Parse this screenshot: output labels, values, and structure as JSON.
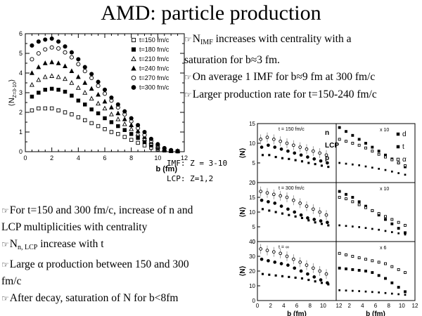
{
  "slide": {
    "title": "AMD: particle production",
    "bullets_top": [
      {
        "pre": "N",
        "sub": "IMF",
        "post": " increases with centrality with a"
      },
      {
        "pre": "saturation for b≈3 fm.",
        "sub": "",
        "post": ""
      },
      {
        "pre": "On average 1 IMF for b≈9 fm at 300 fm/c",
        "sub": "",
        "post": ""
      },
      {
        "pre": "Larger production rate for t=150-240 fm/c",
        "sub": "",
        "post": ""
      }
    ],
    "notes": [
      "IMF: Z = 3-10",
      "LCP: Z=1,2"
    ],
    "bullets_bottom": [
      {
        "pre": "For t=150 and 300 fm/c, increase of n and",
        "sub": "",
        "post": ""
      },
      {
        "pre": "LCP multiplicities with centrality",
        "sub": "",
        "post": ""
      },
      {
        "pre": "N",
        "sub": "n, LCP",
        "post": " increase with t"
      },
      {
        "pre": "Large α production between 150 and 300",
        "sub": "",
        "post": ""
      },
      {
        "pre": "fm/c",
        "sub": "",
        "post": ""
      },
      {
        "pre": "After decay, saturation of N for b<8fm",
        "sub": "",
        "post": ""
      }
    ]
  },
  "chart_data": [
    {
      "type": "scatter",
      "xlabel": "b (fm)",
      "ylabel": "⟨N",
      "ylabel_sub": "Z=3-10",
      "ylabel_end": "⟩",
      "xlim": [
        0,
        12
      ],
      "ylim": [
        0,
        6
      ],
      "xticks": [
        "0",
        "2",
        "4",
        "6",
        "8",
        "10",
        "12"
      ],
      "yticks": [
        "0",
        "1",
        "2",
        "3",
        "4",
        "5",
        "6"
      ],
      "x": [
        0.5,
        1.0,
        1.5,
        2.0,
        2.5,
        3.0,
        3.5,
        4.0,
        4.5,
        5.0,
        5.5,
        6.0,
        6.5,
        7.0,
        7.5,
        8.0,
        8.5,
        9.0,
        9.5,
        10.0,
        10.5,
        11.0,
        11.5
      ],
      "series": [
        {
          "name": "t=150 fm/c",
          "marker": "open-square",
          "values": [
            2.1,
            2.2,
            2.2,
            2.2,
            2.1,
            2.0,
            1.9,
            1.75,
            1.6,
            1.45,
            1.3,
            1.15,
            1.0,
            0.9,
            0.75,
            0.6,
            0.45,
            0.32,
            0.2,
            0.12,
            0.06,
            0.03,
            0.02
          ]
        },
        {
          "name": "t=180 fm/c",
          "marker": "filled-square",
          "values": [
            2.8,
            3.0,
            3.15,
            3.2,
            3.15,
            3.05,
            2.85,
            2.6,
            2.4,
            2.15,
            1.95,
            1.7,
            1.5,
            1.3,
            1.1,
            0.9,
            0.7,
            0.5,
            0.32,
            0.18,
            0.08,
            0.04,
            0.02
          ]
        },
        {
          "name": "t=210 fm/c",
          "marker": "open-triangle",
          "values": [
            3.4,
            3.65,
            3.8,
            3.85,
            3.8,
            3.7,
            3.5,
            3.25,
            3.0,
            2.7,
            2.45,
            2.2,
            1.9,
            1.65,
            1.4,
            1.15,
            0.9,
            0.65,
            0.42,
            0.25,
            0.12,
            0.05,
            0.03
          ]
        },
        {
          "name": "t=240 fm/c",
          "marker": "filled-triangle",
          "values": [
            4.0,
            4.3,
            4.5,
            4.55,
            4.5,
            4.35,
            4.1,
            3.8,
            3.5,
            3.2,
            2.9,
            2.55,
            2.25,
            1.95,
            1.65,
            1.35,
            1.05,
            0.75,
            0.5,
            0.3,
            0.14,
            0.06,
            0.03
          ]
        },
        {
          "name": "t=270 fm/c",
          "marker": "open-circle",
          "values": [
            4.7,
            5.0,
            5.2,
            5.3,
            5.25,
            5.05,
            4.8,
            4.45,
            4.1,
            3.75,
            3.35,
            2.95,
            2.6,
            2.25,
            1.9,
            1.55,
            1.2,
            0.85,
            0.55,
            0.33,
            0.16,
            0.07,
            0.03
          ]
        },
        {
          "name": "t=300 fm/c",
          "marker": "filled-circle",
          "values": [
            5.4,
            5.6,
            5.7,
            5.75,
            5.6,
            5.35,
            5.05,
            4.7,
            4.3,
            3.95,
            3.55,
            3.15,
            2.75,
            2.4,
            2.05,
            1.7,
            1.35,
            1.0,
            0.65,
            0.38,
            0.18,
            0.08,
            0.03
          ]
        }
      ]
    },
    {
      "type": "scatter",
      "xlabel": "b (fm)",
      "ylabel": "⟨N⟩",
      "panels": [
        {
          "label": "t = 150 fm/c",
          "ylim": [
            0,
            15
          ],
          "yticks": [
            "0",
            "5",
            "10",
            "15"
          ],
          "legend": [
            "n",
            "LCP",
            "p"
          ],
          "factor": "x 10",
          "legend_right": [
            "d",
            "t",
            "α"
          ]
        },
        {
          "label": "t = 300 fm/c",
          "ylim": [
            0,
            20
          ],
          "yticks": [
            "0",
            "5",
            "10",
            "15",
            "20"
          ],
          "legend": [],
          "factor": "x 10",
          "legend_right": []
        },
        {
          "label": "t = ∞",
          "ylim": [
            0,
            40
          ],
          "yticks": [
            "0",
            "10",
            "20",
            "30",
            "40"
          ],
          "legend": [],
          "factor": "x 6",
          "legend_right": []
        }
      ],
      "xticks_left": [
        "0",
        "2",
        "4",
        "6",
        "8",
        "10"
      ],
      "xticks_right": [
        "12",
        "2",
        "4",
        "6",
        "8",
        "10",
        "12"
      ],
      "x": [
        0.5,
        1.5,
        2.5,
        3.5,
        4.5,
        5.5,
        6.5,
        7.5,
        8.5,
        9.5,
        10.5
      ],
      "left_series": [
        {
          "name": "n",
          "values": [
            [
              11,
              11.5,
              11,
              10.5,
              10,
              9.5,
              9,
              8.5,
              8,
              7.5,
              7
            ],
            [
              17,
              16.5,
              16,
              15.5,
              15,
              14,
              13,
              12,
              11,
              10,
              9
            ],
            [
              35,
              34,
              33,
              32,
              30,
              28,
              26,
              24,
              22,
              20,
              18
            ]
          ]
        },
        {
          "name": "LCP",
          "values": [
            [
              9,
              9.5,
              9,
              8.5,
              8,
              7.5,
              7,
              6.5,
              6,
              5.5,
              5
            ],
            [
              14,
              13.5,
              13,
              12,
              11,
              10,
              9,
              8,
              7.5,
              7,
              6.5
            ],
            [
              28,
              27,
              26,
              25,
              24,
              22,
              20,
              18,
              16,
              14,
              12
            ]
          ]
        },
        {
          "name": "p",
          "values": [
            [
              7,
              7,
              6.5,
              6.2,
              6,
              5.7,
              5.4,
              5,
              4.7,
              4.3,
              4
            ],
            [
              11,
              10.5,
              10,
              9.5,
              9,
              8.5,
              8,
              7.2,
              6.5,
              6,
              5.5
            ],
            [
              18,
              17.5,
              17,
              16.5,
              16,
              15.5,
              15,
              14,
              13,
              12,
              11
            ]
          ]
        }
      ],
      "right_series": [
        {
          "name": "d",
          "values": [
            [
              14,
              13,
              12,
              11,
              10,
              9,
              8,
              7,
              6,
              5,
              4
            ],
            [
              17,
              16,
              15,
              13.5,
              12,
              10.5,
              9,
              7.5,
              6,
              4.5,
              3
            ],
            [
              22,
              21.5,
              21,
              20.5,
              20,
              19,
              17,
              15,
              12,
              9,
              6
            ]
          ]
        },
        {
          "name": "t",
          "values": [
            [
              5,
              4.8,
              4.6,
              4.4,
              4.1,
              3.8,
              3.5,
              3.2,
              2.8,
              2.4,
              2
            ],
            [
              5.5,
              5.3,
              5.1,
              4.9,
              4.6,
              4.3,
              4,
              3.6,
              3.2,
              2.8,
              2.4
            ],
            [
              7,
              6.8,
              6.6,
              6.4,
              6.1,
              5.8,
              5.5,
              5.1,
              4.7,
              4.3,
              3.9
            ]
          ]
        },
        {
          "name": "α",
          "values": [
            [
              11,
              10.5,
              10,
              9.5,
              8.8,
              8,
              7.2,
              6.5,
              5.8,
              5,
              4.3
            ],
            [
              15,
              14.5,
              13.5,
              12.5,
              11.5,
              10.5,
              9.5,
              8.5,
              7.5,
              6.5,
              5.5
            ],
            [
              32,
              31,
              30,
              29,
              28,
              27,
              26,
              25,
              23,
              21,
              19
            ]
          ]
        }
      ]
    }
  ]
}
